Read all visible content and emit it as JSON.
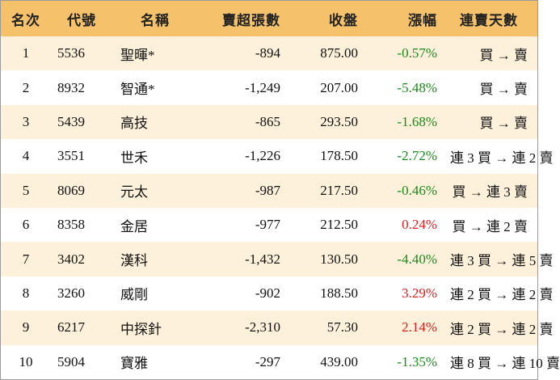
{
  "headers": {
    "rank": "名次",
    "code": "代號",
    "name": "名稱",
    "net_sell": "賣超張數",
    "close": "收盤",
    "change": "漲幅",
    "days": "連賣天數"
  },
  "colors": {
    "header_bg": "#f5c26b",
    "row_alt_bg": "#fdf1dc",
    "negative": "#1a8a1a",
    "positive": "#e01e1e"
  },
  "rows": [
    {
      "rank": "1",
      "code": "5536",
      "name": "聖暉*",
      "net_sell": "-894",
      "close": "875.00",
      "change": "-0.57%",
      "days": "買 → 賣"
    },
    {
      "rank": "2",
      "code": "8932",
      "name": "智通*",
      "net_sell": "-1,249",
      "close": "207.00",
      "change": "-5.48%",
      "days": "買 → 賣"
    },
    {
      "rank": "3",
      "code": "5439",
      "name": "高技",
      "net_sell": "-865",
      "close": "293.50",
      "change": "-1.68%",
      "days": "買 → 賣"
    },
    {
      "rank": "4",
      "code": "3551",
      "name": "世禾",
      "net_sell": "-1,226",
      "close": "178.50",
      "change": "-2.72%",
      "days": "連 3 買 → 連 2 賣"
    },
    {
      "rank": "5",
      "code": "8069",
      "name": "元太",
      "net_sell": "-987",
      "close": "217.50",
      "change": "-0.46%",
      "days": "買 → 連 3 賣"
    },
    {
      "rank": "6",
      "code": "8358",
      "name": "金居",
      "net_sell": "-977",
      "close": "212.50",
      "change": "0.24%",
      "days": "買 → 連 2 賣"
    },
    {
      "rank": "7",
      "code": "3402",
      "name": "漢科",
      "net_sell": "-1,432",
      "close": "130.50",
      "change": "-4.40%",
      "days": "連 3 買 → 連 5 賣"
    },
    {
      "rank": "8",
      "code": "3260",
      "name": "威剛",
      "net_sell": "-902",
      "close": "188.50",
      "change": "3.29%",
      "days": "連 2 買 → 連 2 賣"
    },
    {
      "rank": "9",
      "code": "6217",
      "name": "中探針",
      "net_sell": "-2,310",
      "close": "57.30",
      "change": "2.14%",
      "days": "連 2 買 → 連 2 賣"
    },
    {
      "rank": "10",
      "code": "5904",
      "name": "寶雅",
      "net_sell": "-297",
      "close": "439.00",
      "change": "-1.35%",
      "days": "連 8 買 → 連 10 賣"
    }
  ]
}
